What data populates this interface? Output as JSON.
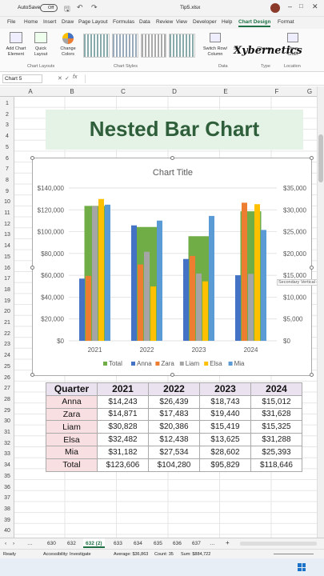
{
  "titlebar": {
    "autosave": "AutoSave",
    "toggle": "Off",
    "filename": "Tip5.xlsx"
  },
  "tabs": [
    "File",
    "Home",
    "Insert",
    "Draw",
    "Page Layout",
    "Formulas",
    "Data",
    "Review",
    "View",
    "Developer",
    "Help",
    "Chart Design",
    "Format"
  ],
  "ribbon": {
    "add_chart_element": "Add Chart Element",
    "quick_layout": "Quick Layout",
    "change_colors": "Change Colors",
    "switch_row_column": "Switch Row/ Column",
    "select_data": "Sel",
    "change_chart_type": "Change",
    "move_chart": "Move Chart",
    "groups": [
      "Chart Layouts",
      "Chart Styles",
      "Data",
      "Type",
      "Location"
    ],
    "logo": "Xybernetics"
  },
  "formula_bar": {
    "name_box": "Chart 5",
    "fx": "fx"
  },
  "columns": [
    "A",
    "B",
    "C",
    "D",
    "E",
    "F",
    "G"
  ],
  "rows": [
    "1",
    "2",
    "3",
    "4",
    "5",
    "6",
    "7",
    "8",
    "9",
    "10",
    "11",
    "12",
    "13",
    "14",
    "15",
    "16",
    "17",
    "18",
    "19",
    "20",
    "21",
    "22",
    "23",
    "24",
    "25",
    "26",
    "27",
    "28",
    "29",
    "30",
    "31",
    "32",
    "33",
    "34",
    "35",
    "36",
    "37",
    "38",
    "39",
    "40"
  ],
  "banner": {
    "title": "Nested Bar Chart"
  },
  "chart_data": {
    "type": "bar",
    "title": "Chart Title",
    "categories": [
      "2021",
      "2022",
      "2023",
      "2024"
    ],
    "primary_axis_ticks": [
      "$0",
      "$20,000",
      "$40,000",
      "$60,000",
      "$80,000",
      "$100,000",
      "$120,000",
      "$140,000"
    ],
    "secondary_axis_ticks": [
      "$0",
      "$5,000",
      "$10,000",
      "$15,000",
      "$20,000",
      "$25,000",
      "$30,000",
      "$35,000"
    ],
    "ylim": [
      0,
      140000
    ],
    "y2lim": [
      0,
      35000
    ],
    "series": [
      {
        "name": "Total",
        "axis": "primary",
        "color": "#70ad47",
        "values": [
          123606,
          104280,
          95829,
          118646
        ]
      },
      {
        "name": "Anna",
        "axis": "secondary",
        "color": "#4472c4",
        "values": [
          14243,
          26439,
          18743,
          15012
        ]
      },
      {
        "name": "Zara",
        "axis": "secondary",
        "color": "#ed7d31",
        "values": [
          14871,
          17483,
          19440,
          31628
        ]
      },
      {
        "name": "Liam",
        "axis": "secondary",
        "color": "#a5a5a5",
        "values": [
          30828,
          20386,
          15419,
          15325
        ]
      },
      {
        "name": "Elsa",
        "axis": "secondary",
        "color": "#ffc000",
        "values": [
          32482,
          12438,
          13625,
          31288
        ]
      },
      {
        "name": "Mia",
        "axis": "secondary",
        "color": "#5b9bd5",
        "values": [
          31182,
          27534,
          28602,
          25393
        ]
      }
    ],
    "legend_position": "bottom",
    "tooltip": "Secondary Vertical (V"
  },
  "table": {
    "headers": [
      "Quarter",
      "2021",
      "2022",
      "2023",
      "2024"
    ],
    "rows": [
      [
        "Anna",
        "$14,243",
        "$26,439",
        "$18,743",
        "$15,012"
      ],
      [
        "Zara",
        "$14,871",
        "$17,483",
        "$19,440",
        "$31,628"
      ],
      [
        "Liam",
        "$30,828",
        "$20,386",
        "$15,419",
        "$15,325"
      ],
      [
        "Elsa",
        "$32,482",
        "$12,438",
        "$13,625",
        "$31,288"
      ],
      [
        "Mia",
        "$31,182",
        "$27,534",
        "$28,602",
        "$25,393"
      ],
      [
        "Total",
        "$123,606",
        "$104,280",
        "$95,829",
        "$118,646"
      ]
    ]
  },
  "sheet_tabs": [
    "630",
    "632",
    "632 (2)",
    "633",
    "634",
    "635",
    "636",
    "637"
  ],
  "status": {
    "ready": "Ready",
    "accessibility": "Accessibility: Investigate",
    "average": "Average: $36,863",
    "count": "Count: 35",
    "sum": "Sum: $884,722"
  }
}
